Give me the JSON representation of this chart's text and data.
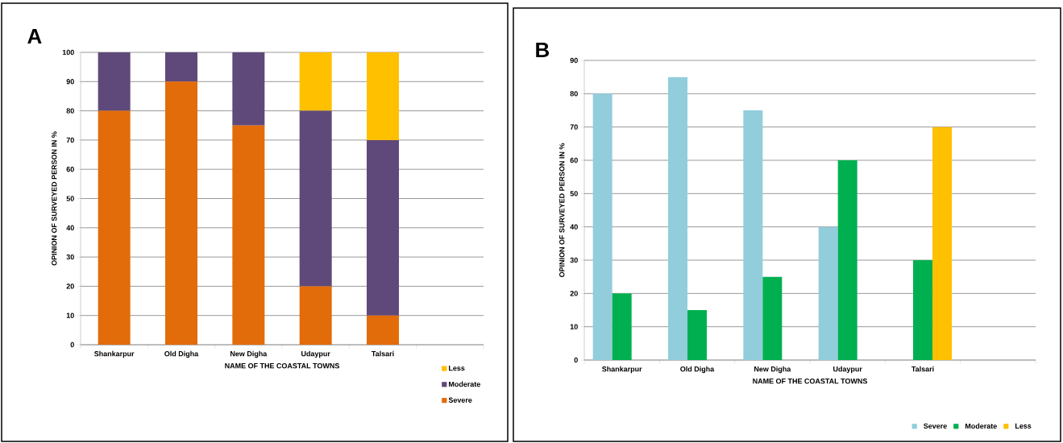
{
  "chart_data": [
    {
      "type": "bar",
      "title": "A",
      "stacked": true,
      "xlabel": "NAME OF THE COASTAL TOWNS",
      "ylabel": "OPINION OF SURVEYED PERSON IN %",
      "categories": [
        "Shankarpur",
        "Old Digha",
        "New Digha",
        "Udaypur",
        "Talsari",
        null
      ],
      "series": [
        {
          "name": "Severe",
          "color": "#e36c0a",
          "values": [
            80,
            90,
            75,
            20,
            10,
            null
          ]
        },
        {
          "name": "Moderate",
          "color": "#5f497a",
          "values": [
            20,
            10,
            25,
            60,
            60,
            null
          ]
        },
        {
          "name": "Less",
          "color": "#ffc000",
          "values": [
            null,
            null,
            null,
            20,
            30,
            null
          ]
        }
      ],
      "ylim": [
        0,
        100
      ],
      "yticks": [
        0,
        10,
        20,
        30,
        40,
        50,
        60,
        70,
        80,
        90,
        100
      ],
      "grid": "y",
      "legend": "bottom right"
    },
    {
      "type": "bar",
      "title": "B",
      "xlabel": "NAME OF THE COASTAL TOWNS",
      "ylabel": "OPINION OF SURVEYED PERSON IN %",
      "categories": [
        "Shankarpur",
        "Old Digha",
        "New Digha",
        "Udaypur",
        "Talsari",
        null
      ],
      "series": [
        {
          "name": "Severe",
          "color": "#92cddc",
          "values": [
            80,
            85,
            75,
            40,
            null,
            null
          ]
        },
        {
          "name": "Moderate",
          "color": "#00b050",
          "values": [
            20,
            15,
            25,
            60,
            30,
            null
          ]
        },
        {
          "name": "Less",
          "color": "#ffc000",
          "values": [
            null,
            null,
            null,
            null,
            70,
            null
          ]
        }
      ],
      "ylim": [
        0,
        90
      ],
      "yticks": [
        0,
        10,
        20,
        30,
        40,
        50,
        60,
        70,
        80,
        90
      ],
      "grid": "y",
      "legend": "bottom"
    }
  ]
}
